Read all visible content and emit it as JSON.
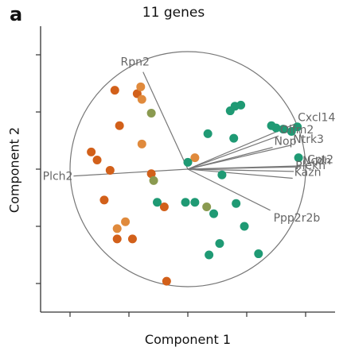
{
  "panel_label": "a",
  "colors": {
    "orange_dark": "#d2601a",
    "orange_light": "#e08a3c",
    "olive": "#8a9a50",
    "teal": "#1f9a74",
    "loading_line": "#777777",
    "circle": "#777777",
    "axis": "#333333",
    "gene_label": "#666666"
  },
  "chart_data": {
    "type": "scatter",
    "title": "11 genes",
    "xlabel": "Component 1",
    "ylabel": "Component 2",
    "xlim": [
      -1.25,
      1.25
    ],
    "ylim": [
      -1.25,
      1.25
    ],
    "x_ticks": [
      -1.0,
      -0.5,
      0.0,
      0.5,
      1.0
    ],
    "y_ticks": [
      -1.0,
      -0.5,
      0.0,
      0.5,
      1.0
    ],
    "tick_labels_shown": false,
    "grid": false,
    "unit_circle": true,
    "loadings": [
      {
        "gene": "Rpn2",
        "x": -0.38,
        "y": 0.85
      },
      {
        "gene": "Plch2",
        "x": -0.97,
        "y": -0.06
      },
      {
        "gene": "Cxcl14",
        "x": 0.92,
        "y": 0.4
      },
      {
        "gene": "Olfm2",
        "x": 0.77,
        "y": 0.29
      },
      {
        "gene": "Nop",
        "x": 0.72,
        "y": 0.19
      },
      {
        "gene": "Ntrk3",
        "x": 0.88,
        "y": 0.21
      },
      {
        "gene": "Ncdn",
        "x": 0.96,
        "y": 0.02
      },
      {
        "gene": "Plekh",
        "x": 0.9,
        "y": -0.02
      },
      {
        "gene": "Cpt2",
        "x": 1.0,
        "y": 0.03
      },
      {
        "gene": "Kazn",
        "x": 0.89,
        "y": -0.08
      },
      {
        "gene": "Ppp2r2b",
        "x": 0.7,
        "y": -0.36
      }
    ],
    "series": [
      {
        "color": "#d2601a",
        "points": [
          [
            -0.62,
            0.69
          ],
          [
            -0.43,
            0.66
          ],
          [
            -0.58,
            0.38
          ],
          [
            -0.82,
            0.15
          ],
          [
            -0.77,
            0.08
          ],
          [
            -0.66,
            -0.01
          ],
          [
            -0.31,
            -0.04
          ],
          [
            -0.71,
            -0.27
          ],
          [
            -0.6,
            -0.61
          ],
          [
            -0.47,
            -0.61
          ],
          [
            -0.2,
            -0.33
          ],
          [
            -0.18,
            -0.98
          ]
        ]
      },
      {
        "color": "#e08a3c",
        "points": [
          [
            -0.4,
            0.72
          ],
          [
            -0.39,
            0.61
          ],
          [
            -0.39,
            0.22
          ],
          [
            0.06,
            0.1
          ],
          [
            -0.53,
            -0.46
          ],
          [
            -0.6,
            -0.52
          ]
        ]
      },
      {
        "color": "#8a9a50",
        "points": [
          [
            -0.31,
            0.49
          ],
          [
            -0.29,
            -0.1
          ],
          [
            0.16,
            -0.33
          ]
        ]
      },
      {
        "color": "#1f9a74",
        "points": [
          [
            0.4,
            0.55
          ],
          [
            0.45,
            0.56
          ],
          [
            0.36,
            0.51
          ],
          [
            0.71,
            0.38
          ],
          [
            0.81,
            0.35
          ],
          [
            0.75,
            0.36
          ],
          [
            0.93,
            0.37
          ],
          [
            0.88,
            0.33
          ],
          [
            0.39,
            0.27
          ],
          [
            0.17,
            0.31
          ],
          [
            0.0,
            0.06
          ],
          [
            0.94,
            0.1
          ],
          [
            0.29,
            -0.05
          ],
          [
            0.06,
            -0.29
          ],
          [
            -0.26,
            -0.29
          ],
          [
            -0.02,
            -0.29
          ],
          [
            0.22,
            -0.39
          ],
          [
            0.41,
            -0.3
          ],
          [
            0.48,
            -0.5
          ],
          [
            0.27,
            -0.65
          ],
          [
            0.18,
            -0.75
          ],
          [
            0.6,
            -0.74
          ]
        ]
      }
    ]
  }
}
